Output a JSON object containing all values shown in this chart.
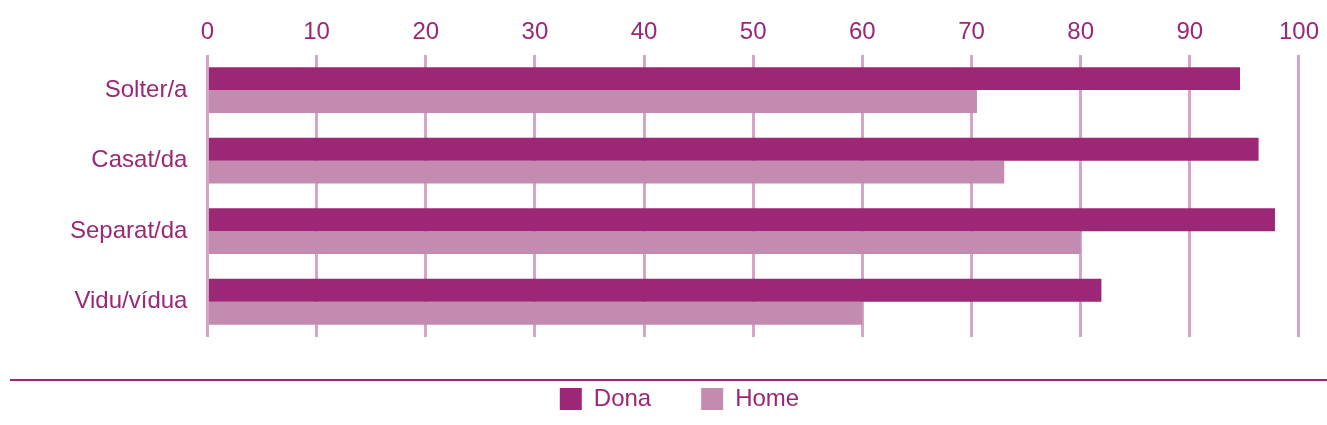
{
  "chart_data": {
    "type": "bar",
    "orientation": "horizontal",
    "categories": [
      "Solter/a",
      "Casat/da",
      "Separat/da",
      "Vidu/vídua"
    ],
    "series": [
      {
        "name": "Home",
        "color": "#c48bb0",
        "values": [
          70.5,
          73,
          80,
          60
        ]
      },
      {
        "name": "Dona",
        "color": "#9b2776",
        "values": [
          94.6,
          96.3,
          97.8,
          81.9
        ]
      }
    ],
    "xlim": [
      0,
      100
    ],
    "xticks": [
      0,
      10,
      20,
      30,
      40,
      50,
      60,
      70,
      80,
      90,
      100
    ],
    "grid": "x",
    "legend": "bottom"
  }
}
